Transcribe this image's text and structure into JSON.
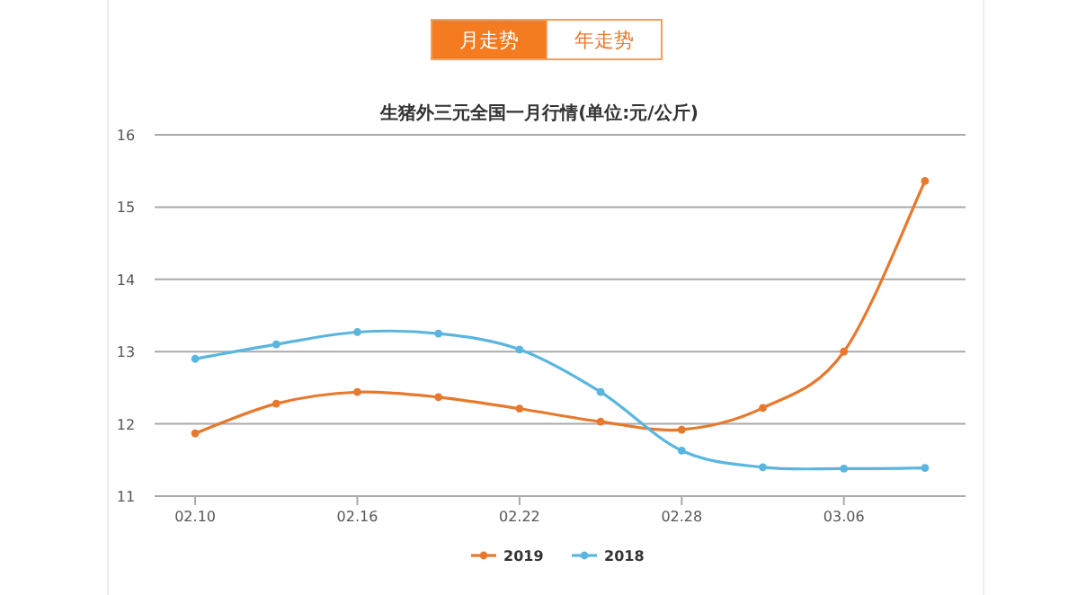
{
  "chart_data": {
    "type": "line",
    "title": "生猪外三元全国一月行情(单位:元/公斤)",
    "annotations": [
      "月走势",
      "年走势"
    ],
    "categories": [
      "02.10",
      null,
      "02.16",
      null,
      "02.22",
      null,
      "02.28",
      null,
      "03.06",
      null
    ],
    "series": [
      {
        "name": "2019",
        "color": "#e8782c",
        "values": [
          11.87,
          12.28,
          12.44,
          12.37,
          12.21,
          12.03,
          11.92,
          12.22,
          13.0,
          15.36
        ]
      },
      {
        "name": "2018",
        "color": "#5ab6df",
        "values": [
          12.9,
          13.1,
          13.27,
          13.25,
          13.03,
          12.44,
          11.63,
          11.4,
          11.38,
          11.39
        ]
      }
    ],
    "ylim": [
      11,
      16
    ],
    "yticks": [
      11,
      12,
      13,
      14,
      15,
      16
    ],
    "grid": "y",
    "legend": "bottom",
    "marker": "circle"
  }
}
